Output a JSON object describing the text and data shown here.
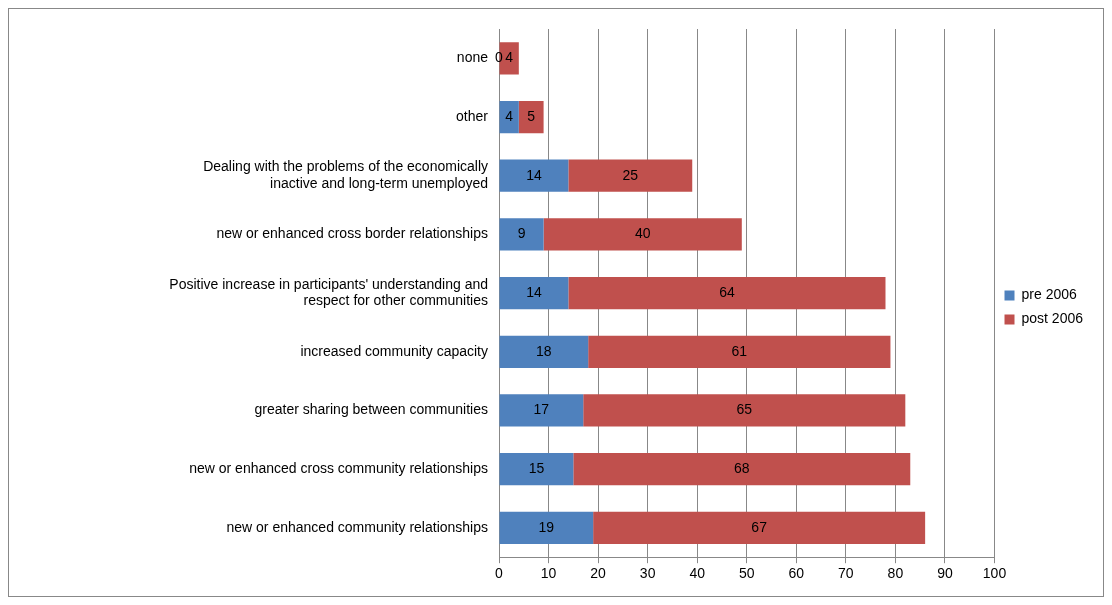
{
  "chart_data": {
    "type": "bar",
    "orientation": "horizontal",
    "stacked": true,
    "categories": [
      "none",
      "other",
      "Dealing with the problems of the economically inactive and long-term unemployed",
      "new or enhanced cross border relationships",
      "Positive increase in participants' understanding and respect for other communities",
      "increased community capacity",
      "greater sharing between communities",
      "new or enhanced cross community relationships",
      "new or enhanced community relationships"
    ],
    "series": [
      {
        "name": "pre 2006",
        "color": "#4f81bd",
        "values": [
          0,
          4,
          14,
          9,
          14,
          18,
          17,
          15,
          19
        ]
      },
      {
        "name": "post 2006",
        "color": "#c0504d",
        "values": [
          4,
          5,
          25,
          40,
          64,
          61,
          65,
          68,
          67
        ]
      }
    ],
    "xlim": [
      0,
      100
    ],
    "xticks": [
      0,
      10,
      20,
      30,
      40,
      50,
      60,
      70,
      80,
      90,
      100
    ],
    "grid": "x",
    "legend": "right",
    "data_labels": true
  }
}
